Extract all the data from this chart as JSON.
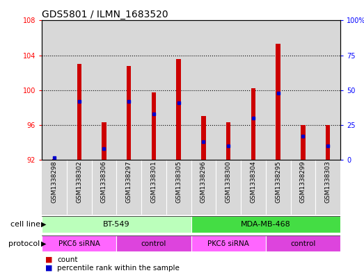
{
  "title": "GDS5801 / ILMN_1683520",
  "samples": [
    "GSM1338298",
    "GSM1338302",
    "GSM1338306",
    "GSM1338297",
    "GSM1338301",
    "GSM1338305",
    "GSM1338296",
    "GSM1338300",
    "GSM1338304",
    "GSM1338295",
    "GSM1338299",
    "GSM1338303"
  ],
  "count_values": [
    92.1,
    103.0,
    96.3,
    102.8,
    99.7,
    103.6,
    97.0,
    96.3,
    100.2,
    105.3,
    96.0,
    96.0
  ],
  "percentile_values": [
    1.5,
    42.0,
    8.0,
    42.0,
    33.0,
    41.0,
    13.0,
    10.0,
    30.0,
    48.0,
    17.0,
    10.0
  ],
  "ymin": 92,
  "ymax": 108,
  "yticks": [
    92,
    96,
    100,
    104,
    108
  ],
  "y2ticks": [
    0,
    25,
    50,
    75,
    100
  ],
  "bar_color": "#cc0000",
  "percentile_color": "#0000cc",
  "bg_color": "#ffffff",
  "cell_lines": [
    {
      "label": "BT-549",
      "start": 0,
      "end": 6,
      "color": "#bbffbb"
    },
    {
      "label": "MDA-MB-468",
      "start": 6,
      "end": 12,
      "color": "#44dd44"
    }
  ],
  "protocols": [
    {
      "label": "PKCδ siRNA",
      "start": 0,
      "end": 3,
      "color": "#ff66ff"
    },
    {
      "label": "control",
      "start": 3,
      "end": 6,
      "color": "#dd44dd"
    },
    {
      "label": "PKCδ siRNA",
      "start": 6,
      "end": 9,
      "color": "#ff66ff"
    },
    {
      "label": "control",
      "start": 9,
      "end": 12,
      "color": "#dd44dd"
    }
  ],
  "cell_line_row_label": "cell line",
  "protocol_row_label": "protocol",
  "legend_count_label": "count",
  "legend_percentile_label": "percentile rank within the sample",
  "title_fontsize": 10,
  "tick_fontsize": 7,
  "bar_width": 0.18
}
